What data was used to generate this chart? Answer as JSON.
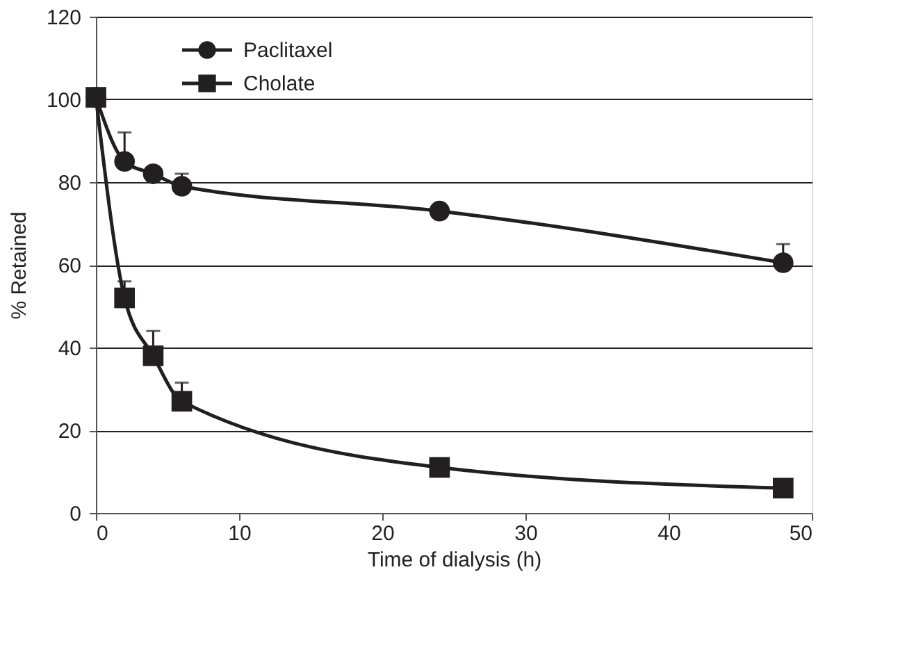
{
  "chart_data": {
    "type": "line",
    "xlabel": "Time of dialysis (h)",
    "ylabel": "% Retained",
    "x": [
      0,
      2,
      4,
      6,
      24,
      48
    ],
    "series": [
      {
        "name": "Paclitaxel",
        "color": "#231f20",
        "marker": "circle",
        "values": [
          100.5,
          85,
          82,
          79,
          73,
          60.5
        ],
        "errors": [
          null,
          [
            85,
            92
          ],
          null,
          [
            79,
            82
          ],
          null,
          [
            60.5,
            65
          ]
        ]
      },
      {
        "name": "Cholate",
        "color": "#231f20",
        "marker": "square",
        "values": [
          100.5,
          52,
          38,
          27,
          11,
          6
        ],
        "errors": [
          null,
          [
            52,
            56
          ],
          [
            38,
            44
          ],
          [
            27,
            31.5
          ],
          null,
          null
        ]
      }
    ],
    "xlim": [
      0,
      50
    ],
    "xticks": [
      0,
      10,
      20,
      30,
      40,
      50
    ],
    "ylim": [
      0,
      120
    ],
    "yticks": [
      0,
      20,
      40,
      60,
      80,
      100,
      120
    ],
    "grid": "y",
    "legend": "top left",
    "line_style": "solid"
  }
}
